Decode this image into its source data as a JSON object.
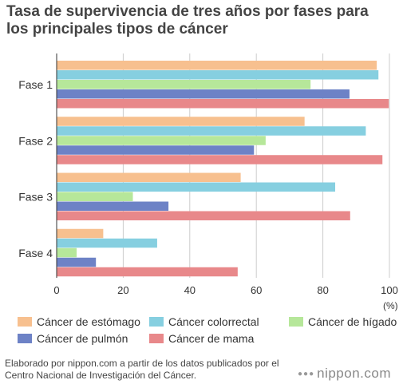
{
  "title": "Tasa de supervivencia de tres años por fases para los principales tipos de cáncer",
  "footer": {
    "source": "Elaborado por nippon.com a partir de los datos publicados por el Centro Nacional de Investigación del Cáncer.",
    "brand": "nippon.com"
  },
  "chart_data": {
    "type": "bar",
    "orientation": "horizontal",
    "categories": [
      "Fase 1",
      "Fase 2",
      "Fase 3",
      "Fase 4"
    ],
    "series": [
      {
        "name": "Cáncer de estómago",
        "color": "#f7c08f",
        "values": [
          96.2,
          74.5,
          55.3,
          14.0
        ]
      },
      {
        "name": "Cáncer colorrectal",
        "color": "#86cfe0",
        "values": [
          96.7,
          92.9,
          83.7,
          30.2
        ]
      },
      {
        "name": "Cáncer de hígado",
        "color": "#b6e79a",
        "values": [
          76.3,
          62.8,
          22.9,
          6.0
        ]
      },
      {
        "name": "Cáncer de pulmón",
        "color": "#6d82c6",
        "values": [
          88.0,
          59.3,
          33.6,
          11.8
        ]
      },
      {
        "name": "Cáncer de mama",
        "color": "#e8888a",
        "values": [
          99.8,
          97.9,
          88.2,
          54.4
        ]
      }
    ],
    "xlim": [
      0,
      100
    ],
    "xticks": [
      0,
      20,
      40,
      60,
      80,
      100
    ],
    "xunit": "(%)",
    "grid": true,
    "legend": "bottom"
  }
}
